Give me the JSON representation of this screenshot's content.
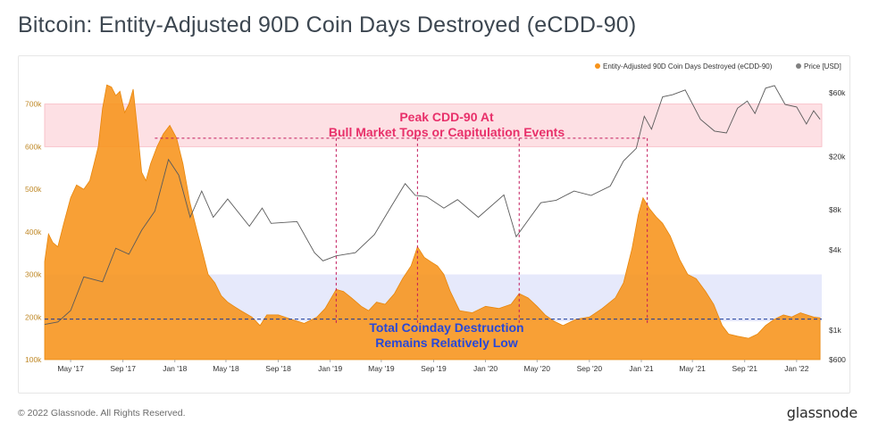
{
  "page": {
    "title": "Bitcoin: Entity-Adjusted 90D Coin Days Destroyed (eCDD-90)",
    "copyright": "© 2022 Glassnode. All Rights Reserved.",
    "brand": "glassnode"
  },
  "chart_data": {
    "type": "area",
    "title": "Bitcoin: Entity-Adjusted 90D Coin Days Destroyed (eCDD-90)",
    "legend": [
      {
        "name": "Entity-Adjusted 90D Coin Days Destroyed (eCDD-90)",
        "color": "#f7931a"
      },
      {
        "name": "Price [USD]",
        "color": "#808080"
      }
    ],
    "legend_placement": "top-right",
    "x_ticks": [
      "May '17",
      "Sep '17",
      "Jan '18",
      "May '18",
      "Sep '18",
      "Jan '19",
      "May '19",
      "Sep '19",
      "Jan '20",
      "May '20",
      "Sep '20",
      "Jan '21",
      "May '21",
      "Sep '21",
      "Jan '22"
    ],
    "x_range": [
      "2017-03",
      "2022-03"
    ],
    "left_axis": {
      "ticks": [
        "100k",
        "200k",
        "300k",
        "400k",
        "500k",
        "600k",
        "700k"
      ],
      "range": [
        100000,
        760000
      ]
    },
    "right_axis": {
      "scale": "log",
      "ticks": [
        "$600",
        "$1k",
        "$4k",
        "$8k",
        "$20k",
        "$60k"
      ],
      "values": [
        600,
        1000,
        4000,
        8000,
        20000,
        60000
      ]
    },
    "series": [
      {
        "name": "Entity-Adjusted 90D Coin Days Destroyed (eCDD-90)",
        "color": "#f7931a",
        "points": [
          [
            "2017-03-01",
            330000
          ],
          [
            "2017-03-10",
            395000
          ],
          [
            "2017-03-20",
            375000
          ],
          [
            "2017-04-01",
            365000
          ],
          [
            "2017-04-15",
            420000
          ],
          [
            "2017-05-01",
            480000
          ],
          [
            "2017-05-15",
            510000
          ],
          [
            "2017-06-01",
            500000
          ],
          [
            "2017-06-15",
            520000
          ],
          [
            "2017-06-25",
            560000
          ],
          [
            "2017-07-05",
            600000
          ],
          [
            "2017-07-15",
            690000
          ],
          [
            "2017-07-25",
            745000
          ],
          [
            "2017-08-05",
            740000
          ],
          [
            "2017-08-15",
            720000
          ],
          [
            "2017-08-25",
            730000
          ],
          [
            "2017-09-05",
            680000
          ],
          [
            "2017-09-15",
            700000
          ],
          [
            "2017-09-25",
            735000
          ],
          [
            "2017-10-05",
            640000
          ],
          [
            "2017-10-15",
            540000
          ],
          [
            "2017-10-25",
            520000
          ],
          [
            "2017-11-05",
            560000
          ],
          [
            "2017-11-20",
            600000
          ],
          [
            "2017-12-05",
            630000
          ],
          [
            "2017-12-20",
            650000
          ],
          [
            "2018-01-05",
            620000
          ],
          [
            "2018-01-20",
            560000
          ],
          [
            "2018-02-05",
            470000
          ],
          [
            "2018-02-20",
            410000
          ],
          [
            "2018-03-05",
            360000
          ],
          [
            "2018-03-20",
            300000
          ],
          [
            "2018-04-05",
            280000
          ],
          [
            "2018-04-20",
            250000
          ],
          [
            "2018-05-05",
            235000
          ],
          [
            "2018-05-20",
            225000
          ],
          [
            "2018-06-05",
            215000
          ],
          [
            "2018-07-01",
            200000
          ],
          [
            "2018-07-20",
            180000
          ],
          [
            "2018-08-05",
            205000
          ],
          [
            "2018-09-01",
            205000
          ],
          [
            "2018-10-01",
            195000
          ],
          [
            "2018-11-01",
            185000
          ],
          [
            "2018-12-01",
            200000
          ],
          [
            "2018-12-20",
            220000
          ],
          [
            "2019-01-15",
            265000
          ],
          [
            "2019-02-01",
            260000
          ],
          [
            "2019-02-20",
            245000
          ],
          [
            "2019-03-15",
            225000
          ],
          [
            "2019-04-01",
            215000
          ],
          [
            "2019-04-20",
            235000
          ],
          [
            "2019-05-10",
            230000
          ],
          [
            "2019-06-01",
            255000
          ],
          [
            "2019-06-20",
            290000
          ],
          [
            "2019-07-10",
            320000
          ],
          [
            "2019-07-25",
            365000
          ],
          [
            "2019-08-10",
            340000
          ],
          [
            "2019-08-25",
            330000
          ],
          [
            "2019-09-10",
            320000
          ],
          [
            "2019-09-25",
            300000
          ],
          [
            "2019-10-10",
            260000
          ],
          [
            "2019-11-01",
            215000
          ],
          [
            "2019-12-01",
            210000
          ],
          [
            "2020-01-01",
            225000
          ],
          [
            "2020-02-01",
            220000
          ],
          [
            "2020-03-01",
            230000
          ],
          [
            "2020-03-20",
            255000
          ],
          [
            "2020-04-10",
            245000
          ],
          [
            "2020-05-01",
            225000
          ],
          [
            "2020-05-20",
            205000
          ],
          [
            "2020-06-10",
            190000
          ],
          [
            "2020-07-01",
            180000
          ],
          [
            "2020-08-01",
            195000
          ],
          [
            "2020-09-01",
            200000
          ],
          [
            "2020-10-01",
            220000
          ],
          [
            "2020-11-01",
            245000
          ],
          [
            "2020-11-20",
            280000
          ],
          [
            "2020-12-10",
            360000
          ],
          [
            "2020-12-25",
            440000
          ],
          [
            "2021-01-05",
            480000
          ],
          [
            "2021-01-20",
            455000
          ],
          [
            "2021-02-05",
            435000
          ],
          [
            "2021-02-20",
            420000
          ],
          [
            "2021-03-10",
            390000
          ],
          [
            "2021-04-01",
            335000
          ],
          [
            "2021-04-20",
            300000
          ],
          [
            "2021-05-10",
            290000
          ],
          [
            "2021-06-01",
            260000
          ],
          [
            "2021-06-20",
            230000
          ],
          [
            "2021-07-10",
            180000
          ],
          [
            "2021-07-25",
            160000
          ],
          [
            "2021-08-15",
            155000
          ],
          [
            "2021-09-10",
            150000
          ],
          [
            "2021-10-01",
            160000
          ],
          [
            "2021-10-20",
            180000
          ],
          [
            "2021-11-10",
            195000
          ],
          [
            "2021-12-01",
            205000
          ],
          [
            "2021-12-20",
            200000
          ],
          [
            "2022-01-10",
            210000
          ],
          [
            "2022-01-25",
            205000
          ],
          [
            "2022-02-10",
            200000
          ],
          [
            "2022-02-25",
            198000
          ]
        ]
      },
      {
        "name": "Price [USD]",
        "color": "#808080",
        "points": [
          [
            "2017-03-01",
            1100
          ],
          [
            "2017-04-01",
            1150
          ],
          [
            "2017-05-01",
            1400
          ],
          [
            "2017-06-01",
            2500
          ],
          [
            "2017-07-15",
            2300
          ],
          [
            "2017-08-15",
            4100
          ],
          [
            "2017-09-15",
            3700
          ],
          [
            "2017-10-15",
            5600
          ],
          [
            "2017-11-15",
            7800
          ],
          [
            "2017-12-17",
            19000
          ],
          [
            "2018-01-10",
            14500
          ],
          [
            "2018-02-06",
            7000
          ],
          [
            "2018-03-05",
            11000
          ],
          [
            "2018-04-01",
            7000
          ],
          [
            "2018-05-05",
            9600
          ],
          [
            "2018-06-25",
            6000
          ],
          [
            "2018-07-25",
            8200
          ],
          [
            "2018-08-15",
            6300
          ],
          [
            "2018-10-15",
            6500
          ],
          [
            "2018-11-25",
            3800
          ],
          [
            "2018-12-15",
            3300
          ],
          [
            "2019-01-15",
            3600
          ],
          [
            "2019-03-01",
            3800
          ],
          [
            "2019-04-15",
            5200
          ],
          [
            "2019-05-25",
            8500
          ],
          [
            "2019-06-26",
            12500
          ],
          [
            "2019-07-20",
            10200
          ],
          [
            "2019-08-15",
            10000
          ],
          [
            "2019-09-25",
            8200
          ],
          [
            "2019-10-27",
            9500
          ],
          [
            "2019-12-15",
            7000
          ],
          [
            "2020-02-13",
            10300
          ],
          [
            "2020-03-13",
            5000
          ],
          [
            "2020-04-15",
            7000
          ],
          [
            "2020-05-10",
            9000
          ],
          [
            "2020-06-15",
            9400
          ],
          [
            "2020-07-27",
            11000
          ],
          [
            "2020-09-05",
            10200
          ],
          [
            "2020-10-20",
            12000
          ],
          [
            "2020-11-20",
            18500
          ],
          [
            "2020-12-20",
            23000
          ],
          [
            "2021-01-08",
            40000
          ],
          [
            "2021-01-25",
            32000
          ],
          [
            "2021-02-20",
            56000
          ],
          [
            "2021-03-15",
            58000
          ],
          [
            "2021-04-14",
            63000
          ],
          [
            "2021-05-20",
            38000
          ],
          [
            "2021-06-22",
            31000
          ],
          [
            "2021-07-20",
            30000
          ],
          [
            "2021-08-15",
            46000
          ],
          [
            "2021-09-07",
            52000
          ],
          [
            "2021-09-25",
            42000
          ],
          [
            "2021-10-20",
            65000
          ],
          [
            "2021-11-10",
            68000
          ],
          [
            "2021-12-05",
            49000
          ],
          [
            "2022-01-01",
            47000
          ],
          [
            "2022-01-24",
            35000
          ],
          [
            "2022-02-10",
            44000
          ],
          [
            "2022-02-25",
            38000
          ]
        ]
      }
    ],
    "annotations": [
      {
        "text_lines": [
          "Peak CDD-90 At",
          "Bull Market Tops or Capitulation Events"
        ],
        "band_range": [
          600000,
          700000
        ],
        "color": "#e8306a"
      },
      {
        "text_lines": [
          "Total Coinday Destruction",
          "Remains Relatively Low"
        ],
        "band_range": [
          190000,
          300000
        ],
        "color": "#2848d8"
      }
    ],
    "reference_lines": [
      {
        "y": 620000,
        "from": "2017-11-15",
        "to": "2021-01-15",
        "color": "#c2185b"
      },
      {
        "y": 195000,
        "from": "2017-03-01",
        "to": "2022-03-01",
        "color": "#1a3a9a"
      }
    ],
    "drop_lines": [
      "2019-01-15",
      "2019-07-25",
      "2020-03-20",
      "2021-01-15"
    ],
    "grid": false
  }
}
